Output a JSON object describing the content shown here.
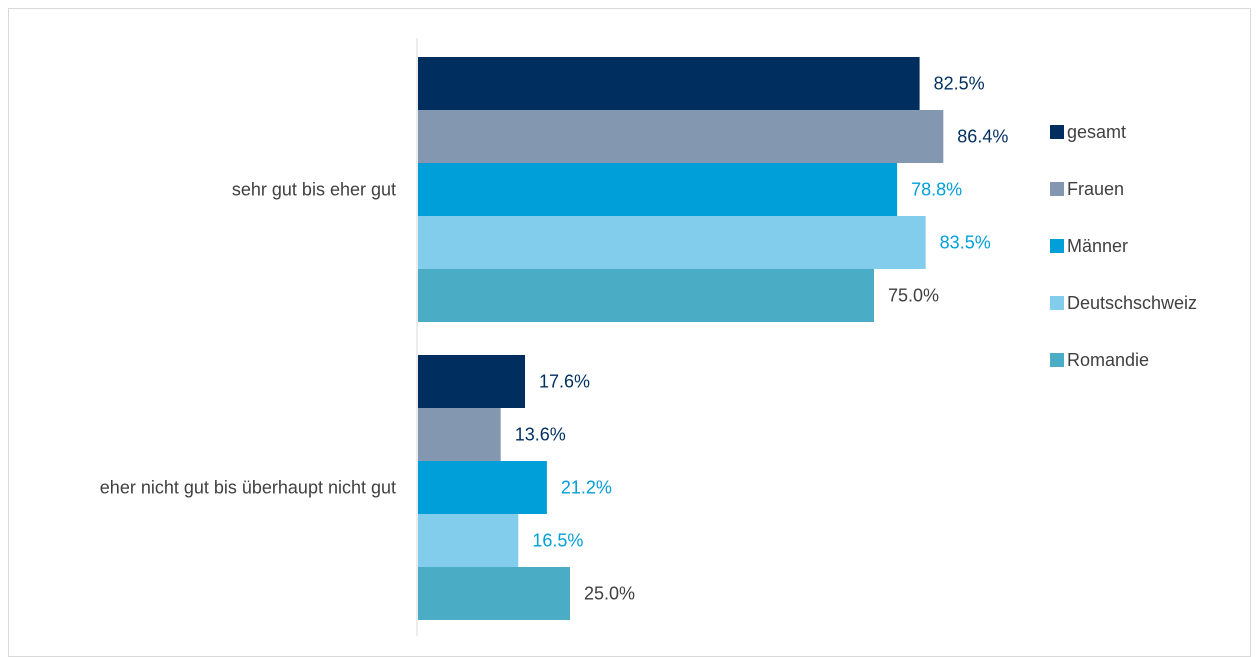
{
  "chart_data": {
    "type": "bar",
    "orientation": "horizontal",
    "categories": [
      "sehr gut bis eher gut",
      "eher nicht gut bis überhaupt nicht gut"
    ],
    "series": [
      {
        "name": "gesamt",
        "values": [
          82.5,
          17.6
        ],
        "labels": [
          "82.5%",
          "17.6%"
        ],
        "color": "#002f5f",
        "label_color": "#002f5f"
      },
      {
        "name": "Frauen",
        "values": [
          86.4,
          13.6
        ],
        "labels": [
          "86.4%",
          "13.6%"
        ],
        "color": "#8497b0",
        "label_color": "#002f5f"
      },
      {
        "name": "Männer",
        "values": [
          78.8,
          21.2
        ],
        "labels": [
          "78.8%",
          "21.2%"
        ],
        "color": "#009fda",
        "label_color": "#009fda"
      },
      {
        "name": "Deutschschweiz",
        "values": [
          83.5,
          16.5
        ],
        "labels": [
          "83.5%",
          "16.5%"
        ],
        "color": "#82cdeb",
        "label_color": "#009fda"
      },
      {
        "name": "Romandie",
        "values": [
          75.0,
          25.0
        ],
        "labels": [
          "75.0%",
          "25.0%"
        ],
        "color": "#4bacc6",
        "label_color": "#404040"
      }
    ],
    "xlim": [
      0,
      100
    ],
    "grid": false,
    "legend_position": "right"
  }
}
